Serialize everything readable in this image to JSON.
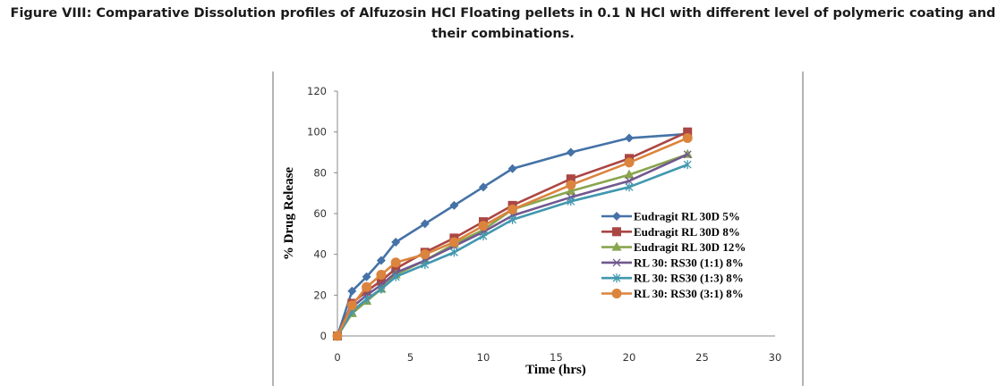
{
  "figure": {
    "caption_line1": "Figure VIII: Comparative Dissolution profiles of Alfuzosin HCl Floating pellets in 0.1 N HCl with different level of polymeric coating and",
    "caption_line2": "their combinations."
  },
  "chart_data": {
    "type": "line",
    "title": "",
    "xlabel": "Time (hrs)",
    "ylabel": "% Drug Release",
    "xlim": [
      0,
      30
    ],
    "ylim": [
      0,
      120
    ],
    "xticks": [
      "0",
      "5",
      "10",
      "15",
      "20",
      "25",
      "30"
    ],
    "yticks": [
      "0",
      "20",
      "40",
      "60",
      "80",
      "100",
      "120"
    ],
    "grid": false,
    "legend_position": "right",
    "x": [
      0,
      1,
      2,
      3,
      4,
      6,
      8,
      10,
      12,
      16,
      20,
      24
    ],
    "series": [
      {
        "name": "Eudragit RL 30D 5%",
        "color": "#4572A7",
        "marker": "diamond",
        "values": [
          0,
          22,
          29,
          37,
          46,
          55,
          64,
          73,
          82,
          90,
          97,
          99
        ]
      },
      {
        "name": "Eudragit RL 30D 8%",
        "color": "#AA4643",
        "marker": "square",
        "values": [
          0,
          16,
          22,
          27,
          33,
          41,
          48,
          56,
          64,
          77,
          87,
          100
        ]
      },
      {
        "name": "Eudragit RL 30D 12%",
        "color": "#89A54E",
        "marker": "triangle",
        "values": [
          0,
          11,
          17,
          23,
          30,
          37,
          45,
          52,
          62,
          71,
          79,
          89
        ]
      },
      {
        "name": "RL 30: RS30 (1:1) 8%",
        "color": "#71588F",
        "marker": "x",
        "values": [
          0,
          14,
          20,
          25,
          31,
          37,
          44,
          51,
          59,
          68,
          76,
          89
        ]
      },
      {
        "name": "RL 30: RS30 (1:3) 8%",
        "color": "#4198AF",
        "marker": "star",
        "values": [
          0,
          12,
          18,
          23,
          29,
          35,
          41,
          49,
          57,
          66,
          73,
          84
        ]
      },
      {
        "name": "RL 30: RS30 (3:1) 8%",
        "color": "#DB843D",
        "marker": "circle",
        "values": [
          0,
          15,
          24,
          30,
          36,
          40,
          46,
          54,
          62,
          74,
          85,
          97
        ]
      }
    ]
  }
}
